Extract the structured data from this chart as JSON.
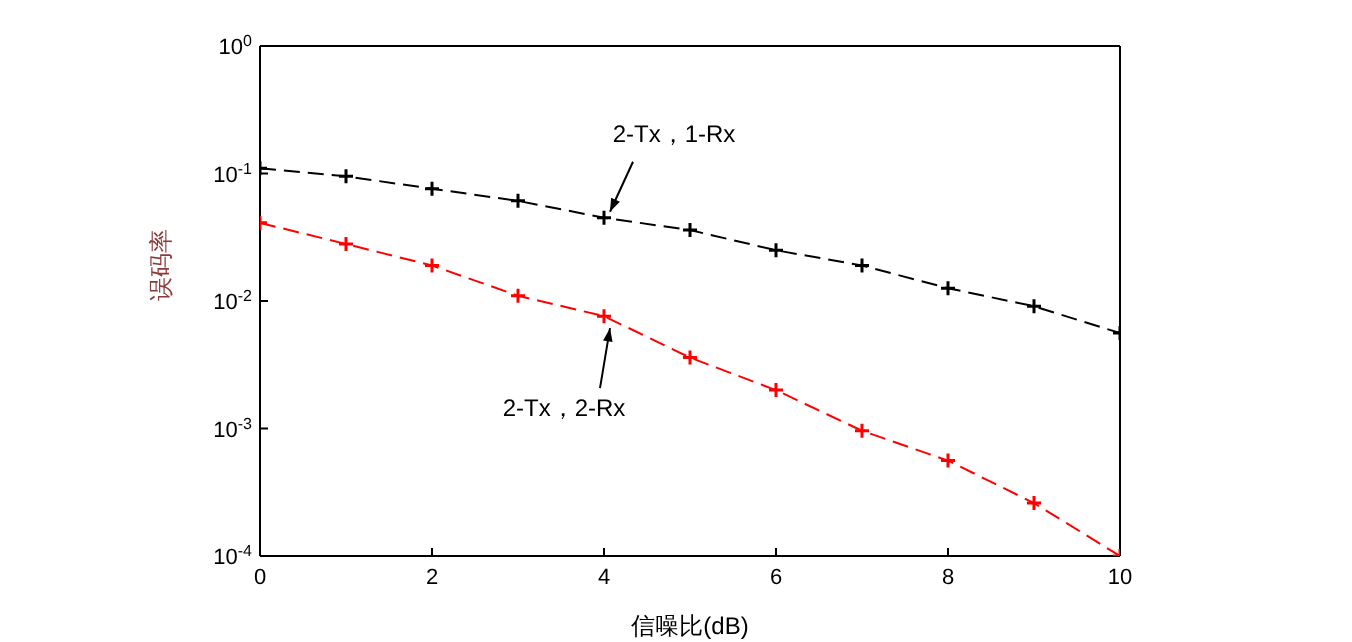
{
  "chart_data": {
    "type": "line",
    "xlabel": "信噪比(dB)",
    "ylabel": "误码率",
    "x": [
      0,
      1,
      2,
      3,
      4,
      5,
      6,
      7,
      8,
      9,
      10
    ],
    "series": [
      {
        "color": "#000000",
        "values": [
          0.11,
          0.095,
          0.076,
          0.061,
          0.045,
          0.036,
          0.025,
          0.019,
          0.0126,
          0.0091,
          0.0056
        ]
      },
      {
        "color": "#ff0000",
        "values": [
          0.041,
          0.028,
          0.019,
          0.011,
          0.0076,
          0.0036,
          0.002,
          0.00096,
          0.00056,
          0.00026,
          0.0001
        ]
      }
    ],
    "log": "y",
    "xlim": [
      0,
      10
    ],
    "xticks": [
      0,
      2,
      4,
      6,
      8,
      10
    ],
    "ylim": [
      0.0001,
      1
    ],
    "yticks": [
      {
        "value": 0.0001,
        "label": "10$^{-4}$"
      },
      {
        "value": 0.001,
        "label": "10$^{-3}$"
      },
      {
        "value": 0.01,
        "label": "10$^{-2}$"
      },
      {
        "value": 0.1,
        "label": "10$^{-1}$"
      },
      {
        "value": 1,
        "label": "10$^{0}$"
      }
    ],
    "annotations": [
      {
        "text": "2-Tx，1-Rx",
        "x": 4,
        "y": 0.045
      },
      {
        "text": "2-Tx，2-Rx",
        "x": 4,
        "y": 0.0076
      }
    ],
    "grid": false,
    "legend": false,
    "marker": "cross",
    "line_style": "dashed"
  }
}
